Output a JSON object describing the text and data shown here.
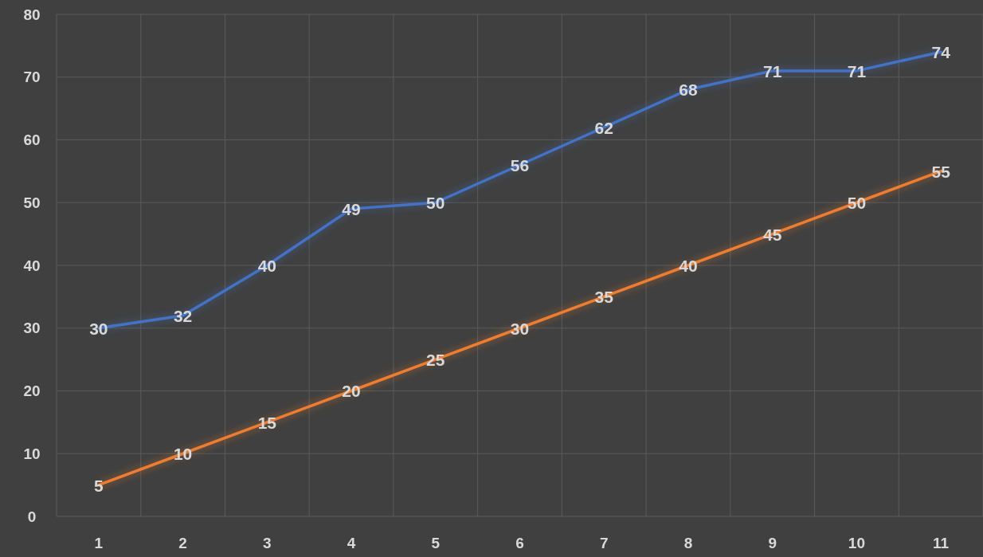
{
  "chart_data": {
    "type": "line",
    "categories": [
      "1",
      "2",
      "3",
      "4",
      "5",
      "6",
      "7",
      "8",
      "9",
      "10",
      "11"
    ],
    "series": [
      {
        "color": "#4472c4",
        "values": [
          30,
          32,
          40,
          49,
          50,
          56,
          62,
          68,
          71,
          71,
          74
        ]
      },
      {
        "color": "#ed7d31",
        "values": [
          5,
          10,
          15,
          20,
          25,
          30,
          35,
          40,
          45,
          50,
          55
        ]
      }
    ],
    "ylim": [
      0,
      80
    ],
    "yticks": [
      0,
      10,
      20,
      30,
      40,
      50,
      60,
      70,
      80
    ],
    "grid": true,
    "data_labels": true,
    "marker": "none",
    "line_style": "solid"
  }
}
